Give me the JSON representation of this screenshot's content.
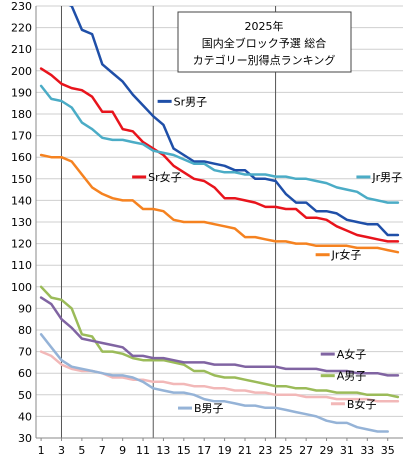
{
  "chart_data": {
    "type": "line",
    "title_lines": [
      "2025年",
      "国内全ブロック予選 総合",
      "カテゴリー別得点ランキング"
    ],
    "ylim": [
      30,
      230
    ],
    "y_ticks": [
      30,
      40,
      50,
      60,
      70,
      80,
      90,
      100,
      110,
      120,
      130,
      140,
      150,
      160,
      170,
      180,
      190,
      200,
      210,
      220,
      230
    ],
    "x_ticks": [
      1,
      3,
      5,
      7,
      9,
      11,
      13,
      15,
      17,
      19,
      21,
      23,
      25,
      27,
      29,
      31,
      33,
      35
    ],
    "x_min": 1,
    "x_max": 36,
    "vlines": [
      3,
      12,
      24
    ],
    "grid": true,
    "series": [
      {
        "name": "Sr男子",
        "color": "#1f4fa8",
        "values": [
          238,
          234,
          232,
          230,
          219,
          217,
          203,
          199,
          195,
          189,
          184,
          179,
          175,
          164,
          161,
          158,
          158,
          157,
          156,
          154,
          154,
          150,
          150,
          149,
          143,
          139,
          139,
          135,
          135,
          134,
          131,
          130,
          129,
          129,
          124,
          124
        ]
      },
      {
        "name": "Sr女子",
        "color": "#e8141c",
        "values": [
          201,
          198,
          194,
          192,
          191,
          188,
          181,
          181,
          173,
          172,
          167,
          164,
          161,
          156,
          153,
          150,
          149,
          146,
          141,
          141,
          140,
          139,
          137,
          137,
          136,
          136,
          132,
          132,
          131,
          128,
          126,
          124,
          123,
          122,
          121,
          121
        ]
      },
      {
        "name": "Jr男子",
        "color": "#4bacc6",
        "values": [
          193,
          187,
          186,
          183,
          176,
          173,
          169,
          168,
          168,
          167,
          166,
          163,
          162,
          161,
          159,
          157,
          157,
          154,
          153,
          153,
          152,
          152,
          152,
          151,
          151,
          150,
          150,
          149,
          148,
          146,
          145,
          144,
          141,
          140,
          139,
          139
        ]
      },
      {
        "name": "Jr女子",
        "color": "#f58220",
        "values": [
          161,
          160,
          160,
          158,
          152,
          146,
          143,
          141,
          140,
          140,
          136,
          136,
          135,
          131,
          130,
          130,
          130,
          129,
          128,
          127,
          123,
          123,
          122,
          121,
          121,
          120,
          120,
          119,
          119,
          119,
          119,
          118,
          118,
          118,
          117,
          116
        ]
      },
      {
        "name": "A男子",
        "color": "#9bbb59",
        "values": [
          100,
          95,
          94,
          90,
          78,
          77,
          70,
          70,
          69,
          67,
          66,
          66,
          66,
          65,
          64,
          61,
          61,
          59,
          58,
          58,
          57,
          56,
          55,
          54,
          54,
          53,
          53,
          52,
          52,
          51,
          51,
          51,
          50,
          50,
          50,
          49
        ]
      },
      {
        "name": "A女子",
        "color": "#8064a2",
        "values": [
          95,
          92,
          85,
          81,
          76,
          75,
          74,
          73,
          72,
          68,
          68,
          67,
          67,
          66,
          65,
          65,
          65,
          64,
          64,
          64,
          63,
          63,
          63,
          63,
          62,
          62,
          62,
          62,
          61,
          61,
          61,
          60,
          60,
          60,
          59,
          59
        ]
      },
      {
        "name": "B女子",
        "color": "#f2b8b8",
        "values": [
          70,
          68,
          64,
          62,
          61,
          61,
          60,
          58,
          58,
          57,
          57,
          56,
          56,
          55,
          55,
          54,
          54,
          53,
          53,
          52,
          52,
          51,
          51,
          50,
          50,
          50,
          49,
          49,
          49,
          48,
          48,
          48,
          48,
          47,
          47,
          47
        ]
      },
      {
        "name": "B男子",
        "color": "#95b3d7",
        "values": [
          78,
          72,
          66,
          63,
          62,
          61,
          60,
          59,
          59,
          58,
          56,
          53,
          52,
          51,
          51,
          50,
          48,
          47,
          47,
          46,
          45,
          45,
          44,
          44,
          43,
          42,
          41,
          40,
          38,
          37,
          37,
          35,
          34,
          33,
          33,
          null
        ]
      }
    ],
    "legend_labels": [
      {
        "series": "Sr男子",
        "x": 14,
        "y": 184,
        "align": "left"
      },
      {
        "series": "Sr女子",
        "x": 11.5,
        "y": 149,
        "align": "left"
      },
      {
        "series": "Jr男子",
        "x": 33.5,
        "y": 149,
        "align": "left"
      },
      {
        "series": "Jr女子",
        "x": 29.5,
        "y": 113,
        "align": "left"
      },
      {
        "series": "A女子",
        "x": 30,
        "y": 67,
        "align": "left"
      },
      {
        "series": "A男子",
        "x": 30,
        "y": 57,
        "align": "left"
      },
      {
        "series": "B女子",
        "x": 31,
        "y": 44,
        "align": "left"
      },
      {
        "series": "B男子",
        "x": 16,
        "y": 42,
        "align": "left"
      }
    ]
  }
}
